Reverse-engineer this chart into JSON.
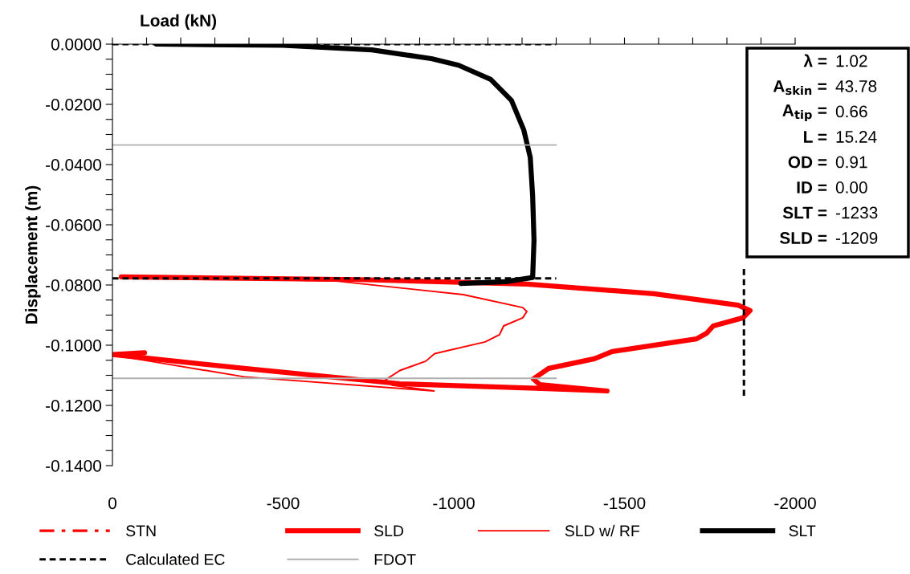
{
  "chart_data": {
    "type": "line",
    "xlabel": "Load (kN)",
    "ylabel": "Displacement (m)",
    "xlim": [
      0,
      -2000
    ],
    "xticks": [
      0,
      {
        "value": -100,
        "label": null
      },
      {
        "value": -200,
        "label": null
      },
      {
        "value": -300,
        "label": null
      },
      {
        "value": -400,
        "label": null
      },
      -500,
      {
        "value": -600,
        "label": null
      },
      {
        "value": -700,
        "label": null
      },
      {
        "value": -800,
        "label": null
      },
      {
        "value": -900,
        "label": null
      },
      -1000,
      {
        "value": -1100,
        "label": null
      },
      {
        "value": -1200,
        "label": null
      },
      {
        "value": -1300,
        "label": null
      },
      {
        "value": -1400,
        "label": null
      },
      -1500,
      {
        "value": -1600,
        "label": null
      },
      {
        "value": -1700,
        "label": null
      },
      {
        "value": -1800,
        "label": null
      },
      {
        "value": -1900,
        "label": null
      },
      -2000
    ],
    "ylim": [
      -0.14,
      0
    ],
    "yticks": [
      {
        "value": 0,
        "label": "0.0000"
      },
      {
        "value": -0.005,
        "label": null
      },
      {
        "value": -0.01,
        "label": null
      },
      {
        "value": -0.015,
        "label": null
      },
      {
        "value": -0.02,
        "label": "-0.0200"
      },
      {
        "value": -0.025,
        "label": null
      },
      {
        "value": -0.03,
        "label": null
      },
      {
        "value": -0.035,
        "label": null
      },
      {
        "value": -0.04,
        "label": "-0.0400"
      },
      {
        "value": -0.045,
        "label": null
      },
      {
        "value": -0.05,
        "label": null
      },
      {
        "value": -0.055,
        "label": null
      },
      {
        "value": -0.06,
        "label": "-0.0600"
      },
      {
        "value": -0.065,
        "label": null
      },
      {
        "value": -0.07,
        "label": null
      },
      {
        "value": -0.075,
        "label": null
      },
      {
        "value": -0.08,
        "label": "-0.0800"
      },
      {
        "value": -0.085,
        "label": null
      },
      {
        "value": -0.09,
        "label": null
      },
      {
        "value": -0.095,
        "label": null
      },
      {
        "value": -0.1,
        "label": "-0.1000"
      },
      {
        "value": -0.105,
        "label": null
      },
      {
        "value": -0.11,
        "label": null
      },
      {
        "value": -0.115,
        "label": null
      },
      {
        "value": -0.12,
        "label": "-0.1200"
      },
      {
        "value": -0.125,
        "label": null
      },
      {
        "value": -0.13,
        "label": null
      },
      {
        "value": -0.135,
        "label": null
      },
      {
        "value": -0.14,
        "label": "-0.1400"
      }
    ],
    "grid": false,
    "legend": "bottom",
    "marker": "none",
    "series": [
      {
        "name": "STN",
        "color": "#ff0000",
        "line_style": "dashdot"
      },
      {
        "name": "SLD",
        "color": "#ff0000",
        "line_style": "solid",
        "x": [
          -26,
          -720,
          -1214,
          -1586,
          -1833,
          -1868,
          -1847,
          -1760,
          -1741,
          -1711,
          -1464,
          -1412,
          -1278,
          -1233,
          -1252,
          -1449,
          -1240,
          -842,
          -386,
          -101,
          -1,
          -94
        ],
        "values": [
          -0.0773,
          -0.0782,
          -0.0797,
          -0.0829,
          -0.0867,
          -0.0885,
          -0.0909,
          -0.0936,
          -0.096,
          -0.0979,
          -0.1021,
          -0.1045,
          -0.1077,
          -0.1112,
          -0.1131,
          -0.1152,
          -0.1143,
          -0.1128,
          -0.1077,
          -0.1043,
          -0.1031,
          -0.1025
        ]
      },
      {
        "name": "SLD w/ RF",
        "color": "#ff0000",
        "line_style": "solid",
        "x": [
          -26,
          -656,
          -1028,
          -1202,
          -1214,
          -1202,
          -1146,
          -1134,
          -1092,
          -944,
          -918,
          -842,
          -800,
          -819,
          -942,
          -386,
          -162,
          -14
        ],
        "values": [
          -0.0773,
          -0.0787,
          -0.0832,
          -0.0875,
          -0.0888,
          -0.0909,
          -0.0936,
          -0.0965,
          -0.0989,
          -0.1028,
          -0.1053,
          -0.1084,
          -0.1115,
          -0.1133,
          -0.1152,
          -0.1105,
          -0.1063,
          -0.1035
        ]
      },
      {
        "name": "SLT",
        "color": "#000000",
        "line_style": "solid",
        "x": [
          -129,
          -499,
          -760,
          -934,
          -1014,
          -1108,
          -1169,
          -1205,
          -1224,
          -1231,
          -1235,
          -1231,
          -1153,
          -1021
        ],
        "values": [
          0,
          -0.0004,
          -0.0019,
          -0.0048,
          -0.007,
          -0.0117,
          -0.0187,
          -0.0285,
          -0.0376,
          -0.0504,
          -0.0651,
          -0.0775,
          -0.0789,
          -0.0795
        ]
      },
      {
        "name": "Calculated EC",
        "color": "#000000",
        "line_style": "dashed",
        "x": [
          0,
          -1300
        ],
        "values": [
          0,
          0
        ]
      },
      {
        "color": "#000000",
        "line_style": "dashed",
        "x": [
          0,
          -1300
        ],
        "values": [
          -0.0778,
          -0.0778
        ]
      },
      {
        "color": "#000000",
        "line_style": "dashed",
        "x": [
          -1850,
          -1850
        ],
        "values": [
          -0.0747,
          -0.1173
        ]
      },
      {
        "name": "FDOT",
        "color": "#b0b0b0",
        "line_style": "solid",
        "x": [
          0,
          -1300
        ],
        "values": [
          -0.0335,
          -0.0335
        ]
      },
      {
        "color": "#b0b0b0",
        "line_style": "solid",
        "x": [
          0,
          -1300
        ],
        "values": [
          -0.111,
          -0.111
        ]
      }
    ],
    "annotations": [
      "λ = 1.02",
      "A$_{skin}$ = 43.78",
      "A$_{tip}$ = 0.66",
      "L = 15.24",
      "OD = 0.91",
      "ID = 0.00",
      "SLT = -1233",
      "SLD = -1209"
    ]
  }
}
